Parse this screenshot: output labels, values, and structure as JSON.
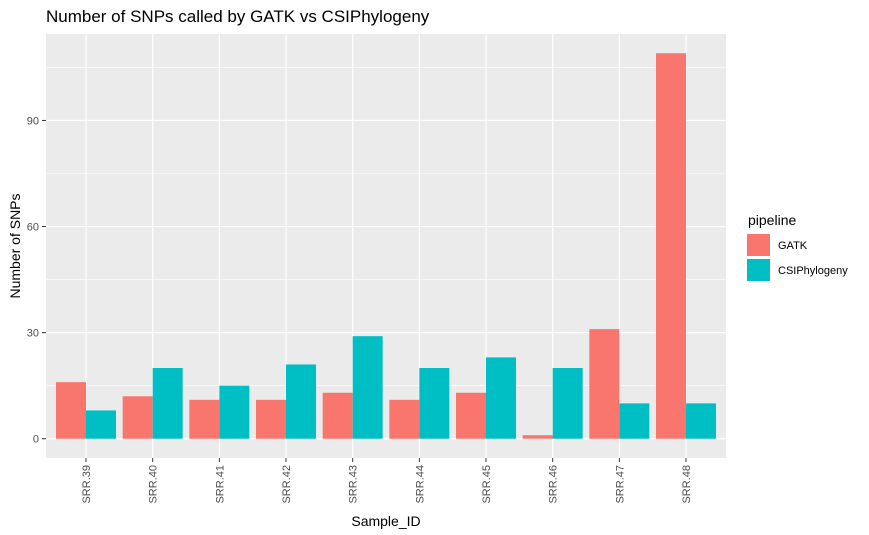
{
  "chart_data": {
    "type": "bar",
    "title": "Number of SNPs called by GATK vs CSIPhylogeny",
    "xlabel": "Sample_ID",
    "ylabel": "Number of SNPs",
    "categories": [
      "SRR.39",
      "SRR.40",
      "SRR.41",
      "SRR.42",
      "SRR.43",
      "SRR.44",
      "SRR.45",
      "SRR.46",
      "SRR.47",
      "SRR.48"
    ],
    "series": [
      {
        "name": "GATK",
        "color": "#F8766D",
        "values": [
          16,
          12,
          11,
          11,
          13,
          11,
          13,
          1,
          31,
          109
        ]
      },
      {
        "name": "CSIPhylogeny",
        "color": "#00BFC4",
        "values": [
          8,
          20,
          15,
          21,
          29,
          20,
          23,
          20,
          10,
          10
        ]
      }
    ],
    "yticks": [
      "0",
      "30",
      "60",
      "90"
    ],
    "ylim": [
      -5.45,
      114.45
    ],
    "grid": true,
    "legend": {
      "title": "pipeline",
      "position": "right"
    },
    "panel_background": "#EBEBEB",
    "grid_color": "#FFFFFF"
  }
}
